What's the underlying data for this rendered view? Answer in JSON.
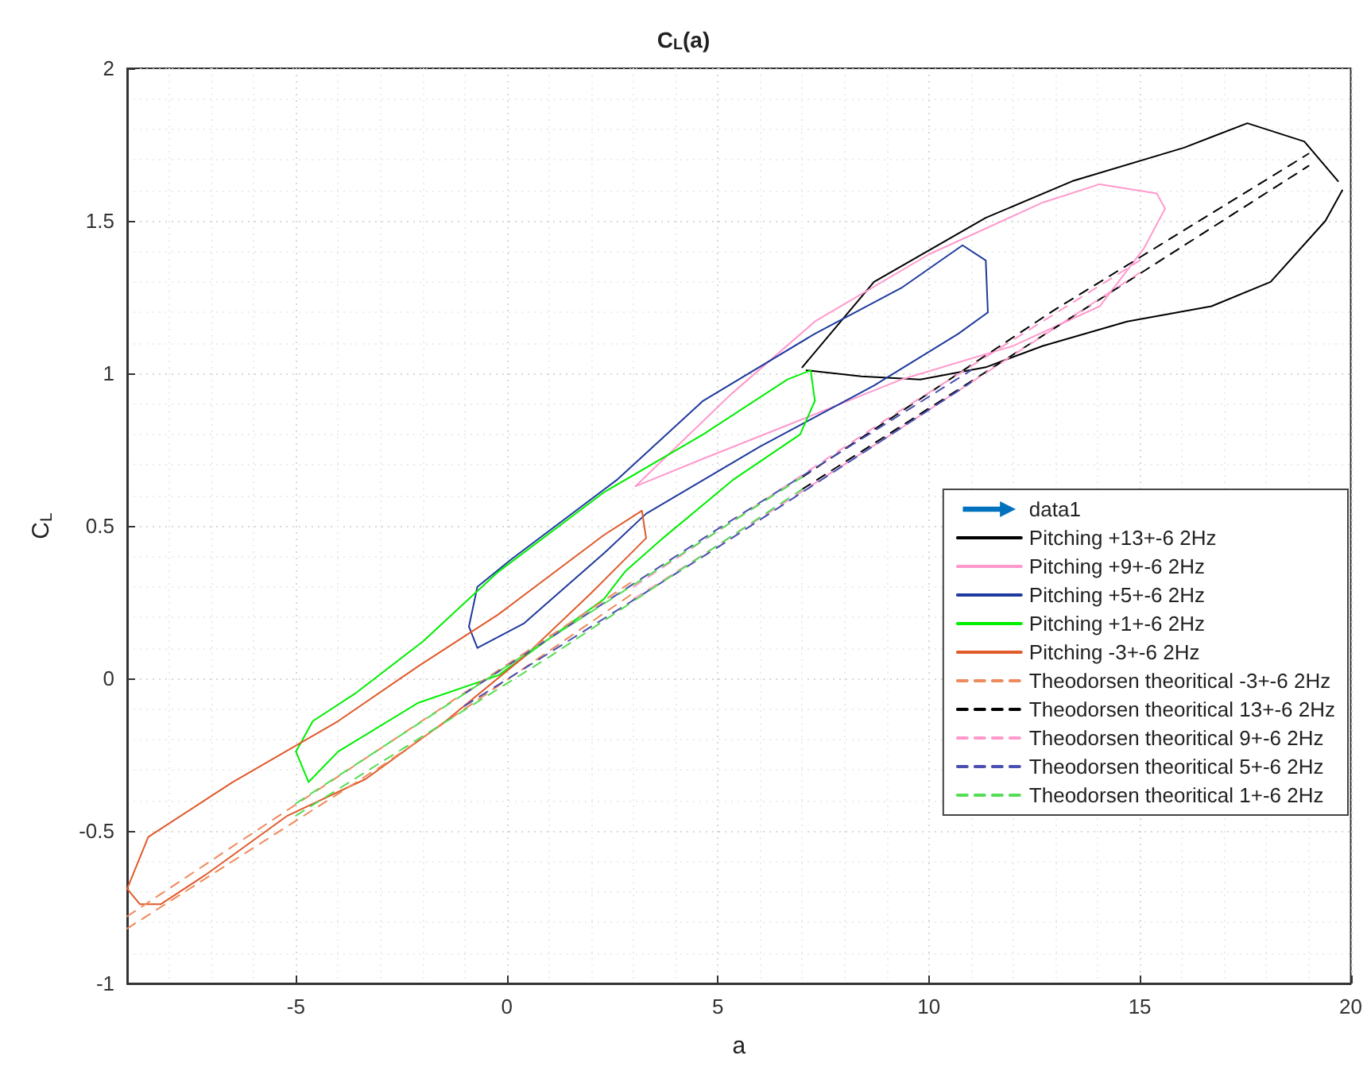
{
  "chart_data": {
    "type": "line",
    "title": "C$_{L}$(a)",
    "xlabel": "a",
    "ylabel": "C$_{L}$",
    "xlim": [
      -9,
      20
    ],
    "xticks": [
      -5,
      0,
      5,
      10,
      15,
      20
    ],
    "ylim": [
      -1,
      2
    ],
    "yticks": [
      -1,
      -0.5,
      0,
      0.5,
      1,
      1.5,
      2
    ],
    "grid": true,
    "legend": "right",
    "marker": "none",
    "series": [
      {
        "name": "data1",
        "color": "#0072bd"
      },
      {
        "name": "Pitching +13+-6 2Hz",
        "color": "#000000",
        "line_style": "solid",
        "x": [
          7.0,
          8.7,
          11.35,
          13.4,
          16.05,
          17.55,
          18.9,
          19.7
        ],
        "values": [
          1.02,
          1.3,
          1.51,
          1.63,
          1.74,
          1.82,
          1.76,
          1.63
        ]
      },
      {
        "color": "#000000",
        "line_style": "solid",
        "x": [
          7.1,
          8.4,
          9.8,
          11.35,
          12.7,
          14.7,
          16.7,
          18.1,
          19.4,
          19.8
        ],
        "values": [
          1.01,
          0.99,
          0.98,
          1.02,
          1.09,
          1.17,
          1.22,
          1.3,
          1.5,
          1.6
        ]
      },
      {
        "name": "Pitching +9+-6 2Hz",
        "color": "#ff99cc",
        "line_style": "solid",
        "x": [
          3.05,
          5.3,
          7.3,
          10.0,
          12.7,
          14.05,
          15.4,
          15.6
        ],
        "values": [
          0.63,
          0.93,
          1.17,
          1.39,
          1.56,
          1.62,
          1.59,
          1.54
        ]
      },
      {
        "color": "#ff99cc",
        "line_style": "solid",
        "x": [
          3.05,
          4.65,
          6.65,
          9.35,
          12.0,
          14.05,
          15.1,
          15.6
        ],
        "values": [
          0.63,
          0.72,
          0.83,
          0.98,
          1.09,
          1.22,
          1.41,
          1.54
        ]
      },
      {
        "name": "Pitching +5+-6 2Hz",
        "color": "#1f3a9e",
        "line_style": "solid",
        "x": [
          -0.9,
          -0.7,
          0.1,
          2.6,
          4.65,
          7.3,
          9.35,
          10.8,
          11.35,
          11.4
        ],
        "values": [
          0.17,
          0.3,
          0.39,
          0.65,
          0.91,
          1.13,
          1.28,
          1.42,
          1.37,
          1.2
        ]
      },
      {
        "color": "#1f3a9e",
        "line_style": "solid",
        "x": [
          -0.9,
          -0.7,
          0.4,
          2.3,
          3.3,
          6.0,
          8.7,
          10.7,
          11.4
        ],
        "values": [
          0.17,
          0.1,
          0.18,
          0.41,
          0.54,
          0.76,
          0.96,
          1.13,
          1.2
        ]
      },
      {
        "name": "Pitching +1+-6 2Hz",
        "color": "#00ee00",
        "line_style": "solid",
        "x": [
          -5.0,
          -4.6,
          -3.6,
          -2.0,
          -0.2,
          2.3,
          4.65,
          6.65,
          7.2,
          7.3
        ],
        "values": [
          -0.24,
          -0.14,
          -0.05,
          0.12,
          0.35,
          0.61,
          0.8,
          0.98,
          1.01,
          0.91
        ]
      },
      {
        "color": "#00ee00",
        "line_style": "solid",
        "x": [
          -5.0,
          -4.7,
          -4.0,
          -2.1,
          -0.2,
          2.3,
          2.8,
          3.7,
          5.35,
          6.95,
          7.3
        ],
        "values": [
          -0.24,
          -0.34,
          -0.24,
          -0.08,
          0.01,
          0.26,
          0.35,
          0.46,
          0.65,
          0.8,
          0.91
        ]
      },
      {
        "name": "Pitching -3+-6 2Hz",
        "color": "#e05a2a",
        "line_style": "solid",
        "x": [
          -9,
          -8.5,
          -6.5,
          -4.0,
          -2.1,
          -0.2,
          2.3,
          3.2,
          3.3
        ],
        "values": [
          -0.69,
          -0.52,
          -0.34,
          -0.14,
          0.04,
          0.21,
          0.47,
          0.55,
          0.46
        ]
      },
      {
        "color": "#e05a2a",
        "line_style": "solid",
        "x": [
          -9,
          -8.7,
          -8.2,
          -7.1,
          -5.2,
          -3.35,
          -1.45,
          0.4,
          2.0,
          3.3
        ],
        "values": [
          -0.69,
          -0.74,
          -0.74,
          -0.64,
          -0.45,
          -0.33,
          -0.14,
          0.07,
          0.28,
          0.46
        ]
      },
      {
        "name": "Theodorsen theoritical -3+-6 2Hz",
        "color": "#ee8a5c",
        "line_style": "dashed",
        "x": [
          -9,
          -3,
          3
        ],
        "values": [
          -0.78,
          -0.23,
          0.32
        ]
      },
      {
        "color": "#ee8a5c",
        "line_style": "dashed",
        "x": [
          -9,
          -3,
          3
        ],
        "values": [
          -0.82,
          -0.29,
          0.28
        ]
      },
      {
        "name": "Theodorsen theoritical 13+-6 2Hz",
        "color": "#000000",
        "line_style": "dashed",
        "x": [
          7,
          13,
          19
        ],
        "values": [
          0.66,
          1.21,
          1.72
        ]
      },
      {
        "color": "#000000",
        "line_style": "dashed",
        "x": [
          7,
          13,
          19
        ],
        "values": [
          0.62,
          1.15,
          1.68
        ]
      },
      {
        "name": "Theodorsen theoritical 9+-6 2Hz",
        "color": "#ff99cc",
        "line_style": "dashed",
        "x": [
          3,
          9,
          15
        ],
        "values": [
          0.3,
          0.85,
          1.37
        ]
      },
      {
        "color": "#ff99cc",
        "line_style": "dashed",
        "x": [
          3,
          9,
          15
        ],
        "values": [
          0.26,
          0.79,
          1.33
        ]
      },
      {
        "name": "Theodorsen theoritical 5+-6 2Hz",
        "color": "#4a4fb0",
        "line_style": "dashed",
        "x": [
          -1,
          5,
          11
        ],
        "values": [
          -0.05,
          0.49,
          1.01
        ]
      },
      {
        "color": "#4a4fb0",
        "line_style": "dashed",
        "x": [
          -1,
          5,
          11
        ],
        "values": [
          -0.09,
          0.43,
          0.97
        ]
      },
      {
        "name": "Theodorsen theoritical 1+-6 2Hz",
        "color": "#55dd55",
        "line_style": "dashed",
        "x": [
          -5,
          1,
          7
        ],
        "values": [
          -0.41,
          0.13,
          0.66
        ]
      },
      {
        "color": "#55dd55",
        "line_style": "dashed",
        "x": [
          -5,
          1,
          7
        ],
        "values": [
          -0.45,
          0.07,
          0.62
        ]
      }
    ]
  }
}
